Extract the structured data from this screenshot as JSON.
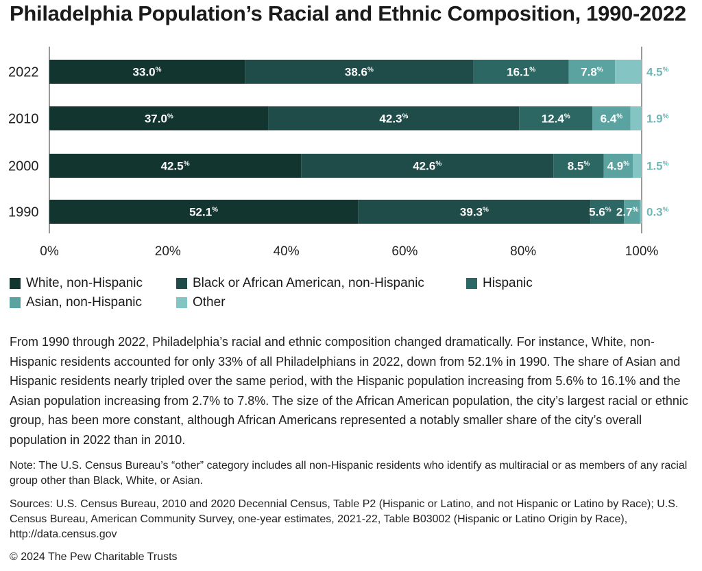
{
  "title": "Philadelphia Population’s Racial and Ethnic Composition, 1990-2022",
  "colors": {
    "white": "#123530",
    "black": "#1f4c49",
    "hispanic": "#2c6764",
    "asian": "#5aa3a0",
    "other": "#84c4c2",
    "other_label": "#6fb8b5"
  },
  "chart_data": {
    "type": "bar",
    "orientation": "horizontal",
    "stacked": true,
    "percent_sign": "%",
    "categories": [
      "2022",
      "2010",
      "2000",
      "1990"
    ],
    "series": [
      {
        "name": "White, non-Hispanic",
        "values": [
          33.0,
          37.0,
          42.5,
          52.1
        ]
      },
      {
        "name": "Black or African American, non-Hispanic",
        "values": [
          38.6,
          42.3,
          42.6,
          39.3
        ]
      },
      {
        "name": "Hispanic",
        "values": [
          16.1,
          12.4,
          8.5,
          5.6
        ]
      },
      {
        "name": "Asian, non-Hispanic",
        "values": [
          7.8,
          6.4,
          4.9,
          2.7
        ]
      },
      {
        "name": "Other",
        "values": [
          4.5,
          1.9,
          1.5,
          0.3
        ]
      }
    ],
    "xlim": [
      0,
      100
    ],
    "x_ticks": [
      "0%",
      "20%",
      "40%",
      "60%",
      "80%",
      "100%"
    ],
    "x_tick_values": [
      0,
      20,
      40,
      60,
      80,
      100
    ],
    "legend_position": "bottom",
    "grid": false
  },
  "legend": {
    "items": [
      "White, non-Hispanic",
      "Black or African American, non-Hispanic",
      "Hispanic",
      "Asian, non-Hispanic",
      "Other"
    ]
  },
  "description": "From 1990 through 2022, Philadelphia’s racial and ethnic composition changed dramatically. For instance, White, non-Hispanic residents accounted for only 33% of all Philadelphians in 2022, down from 52.1% in 1990. The share of Asian and Hispanic residents nearly tripled over the same period, with the Hispanic population increasing from 5.6% to 16.1% and the Asian population increasing from 2.7% to 7.8%. The size of the African American population, the city’s largest racial or ethnic group, has been more constant, although African Americans represented a notably smaller share of the city’s overall population in 2022 than in 2010.",
  "note": "Note: The U.S. Census Bureau’s “other” category includes all non-Hispanic residents who identify as multiracial or as members of any racial group other than Black, White, or Asian.",
  "sources": "Sources: U.S. Census Bureau, 2010 and 2020 Decennial Census, Table P2 (Hispanic or Latino, and not Hispanic or Latino by Race); U.S. Census Bureau, American Community Survey, one-year estimates, 2021-22, Table B03002 (Hispanic or Latino Origin by Race), http://data.census.gov",
  "copyright": "© 2024 The Pew Charitable Trusts"
}
